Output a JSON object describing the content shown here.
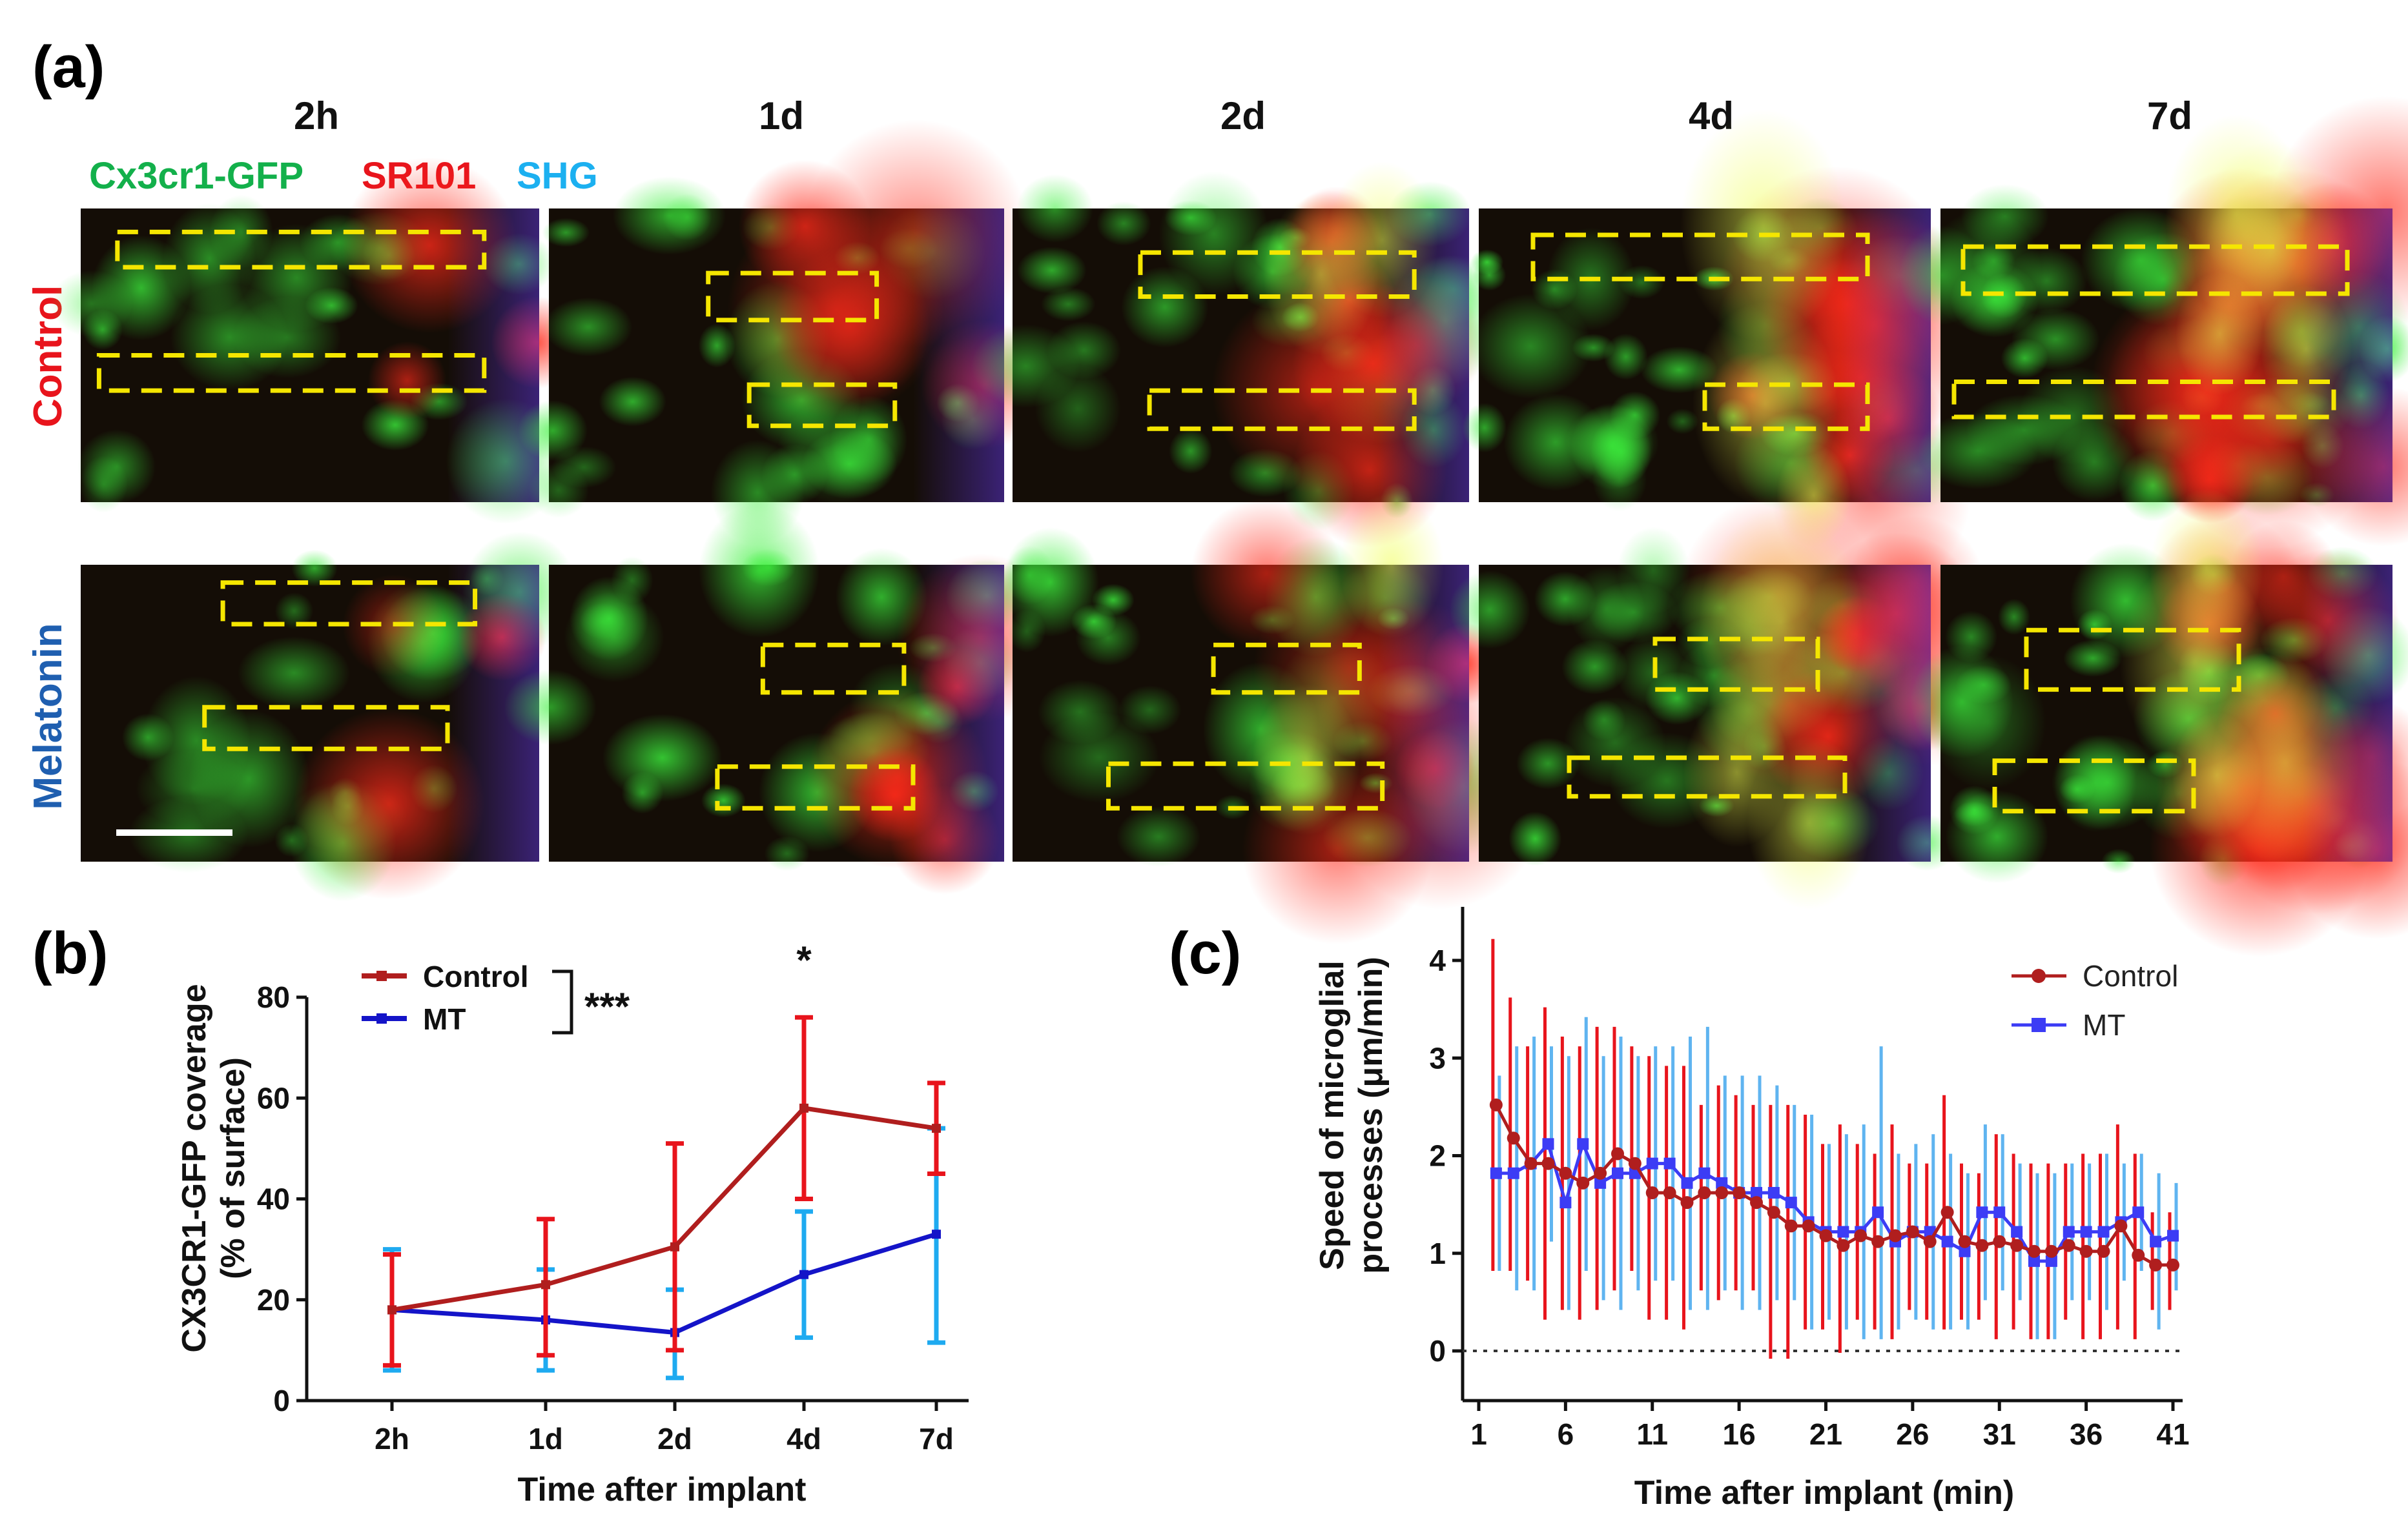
{
  "panel_a": {
    "letter": "(a)",
    "timepoints": [
      "2h",
      "1d",
      "2d",
      "4d",
      "7d"
    ],
    "channels": [
      {
        "label": "Cx3cr1-GFP",
        "color": "#13b04b"
      },
      {
        "label": "SR101",
        "color": "#e8141c"
      },
      {
        "label": "SHG",
        "color": "#1cb0f0"
      }
    ],
    "rows": [
      {
        "label": "Control",
        "color": "#e8141c"
      },
      {
        "label": "Melatonin",
        "color": "#1f5fb0"
      }
    ],
    "roi_color": "#f5e600",
    "scale_bar_color": "#ffffff"
  },
  "panel_b": {
    "letter": "(b)",
    "significance_overall": "***",
    "significance_point": "*",
    "chart_data": {
      "type": "line",
      "categories": [
        "2h",
        "1d",
        "2d",
        "4d",
        "7d"
      ],
      "series": [
        {
          "name": "Control",
          "color": "#b01e1e",
          "errcolor": "#e8141c",
          "values": [
            18,
            23,
            30.5,
            58,
            54
          ],
          "err_high": [
            29,
            36,
            51,
            76,
            63
          ],
          "err_low": [
            7,
            9,
            10,
            40,
            45
          ]
        },
        {
          "name": "MT",
          "color": "#1414c8",
          "errcolor": "#1eaaf0",
          "values": [
            18,
            16,
            13.5,
            25,
            33
          ],
          "err_high": [
            30,
            26,
            22,
            37.5,
            54
          ],
          "err_low": [
            6,
            6,
            4.5,
            12.5,
            11.5
          ]
        }
      ],
      "xlabel": "Time after implant",
      "ylabel": "CX3CR1-GFP coverage",
      "ylabel2": "(% of surface)",
      "ylim": [
        0,
        80
      ],
      "yticks": [
        "0",
        "20",
        "40",
        "60",
        "80"
      ]
    }
  },
  "panel_c": {
    "letter": "(c)",
    "chart_data": {
      "type": "line",
      "x": [
        2,
        3,
        4,
        5,
        6,
        7,
        8,
        9,
        10,
        11,
        12,
        13,
        14,
        15,
        16,
        17,
        18,
        19,
        20,
        21,
        22,
        23,
        24,
        25,
        26,
        27,
        28,
        29,
        30,
        31,
        32,
        33,
        34,
        35,
        36,
        37,
        38,
        39,
        40,
        41
      ],
      "series": [
        {
          "name": "Control",
          "color": "#b01e1e",
          "errcolor": "#e8141c",
          "marker": "circle",
          "values": [
            2.52,
            2.18,
            1.92,
            1.92,
            1.82,
            1.72,
            1.82,
            2.02,
            1.92,
            1.62,
            1.62,
            1.52,
            1.62,
            1.62,
            1.62,
            1.52,
            1.42,
            1.28,
            1.28,
            1.18,
            1.08,
            1.18,
            1.12,
            1.18,
            1.22,
            1.12,
            1.42,
            1.12,
            1.08,
            1.12,
            1.08,
            1.02,
            1.02,
            1.08,
            1.02,
            1.02,
            1.28,
            0.98,
            0.88,
            0.88
          ],
          "err_high": [
            4.22,
            3.62,
            3.12,
            3.52,
            3.22,
            3.12,
            3.32,
            3.32,
            3.12,
            3.02,
            2.92,
            2.92,
            2.52,
            2.72,
            2.62,
            2.52,
            2.52,
            2.52,
            2.42,
            2.12,
            2.32,
            2.12,
            2.02,
            2.32,
            1.92,
            1.92,
            2.62,
            1.92,
            1.82,
            2.22,
            2.02,
            1.92,
            1.92,
            1.92,
            2.02,
            2.02,
            2.32,
            2.02,
            1.42,
            1.42
          ],
          "err_low": [
            0.82,
            0.82,
            0.72,
            0.32,
            0.42,
            0.32,
            0.42,
            0.62,
            0.82,
            0.32,
            0.32,
            0.22,
            0.62,
            0.52,
            0.62,
            0.62,
            -0.08,
            -0.08,
            0.22,
            0.22,
            -0.02,
            0.32,
            0.22,
            0.12,
            0.42,
            0.32,
            0.22,
            0.32,
            0.32,
            0.12,
            0.22,
            0.12,
            0.12,
            0.32,
            0.12,
            0.12,
            0.22,
            0.12,
            0.42,
            0.42
          ]
        },
        {
          "name": "MT",
          "color": "#3c3cf5",
          "errcolor": "#5fb4f0",
          "marker": "square",
          "values": [
            1.82,
            1.82,
            1.92,
            2.12,
            1.52,
            2.12,
            1.72,
            1.82,
            1.82,
            1.92,
            1.92,
            1.72,
            1.82,
            1.72,
            1.62,
            1.62,
            1.62,
            1.52,
            1.32,
            1.22,
            1.22,
            1.22,
            1.42,
            1.12,
            1.22,
            1.22,
            1.12,
            1.02,
            1.42,
            1.42,
            1.22,
            0.92,
            0.92,
            1.22,
            1.22,
            1.22,
            1.32,
            1.42,
            1.12,
            1.18
          ],
          "err_high": [
            2.82,
            3.12,
            3.22,
            3.12,
            3.02,
            3.42,
            3.02,
            3.22,
            3.02,
            3.12,
            3.12,
            3.22,
            3.32,
            2.82,
            2.82,
            2.82,
            2.72,
            2.52,
            2.42,
            2.12,
            2.22,
            2.32,
            3.12,
            2.02,
            2.12,
            2.22,
            2.02,
            1.82,
            2.32,
            2.22,
            1.92,
            1.82,
            1.82,
            1.92,
            1.92,
            2.02,
            1.92,
            2.02,
            1.82,
            1.72
          ],
          "err_low": [
            0.82,
            0.62,
            0.62,
            1.12,
            0.42,
            0.82,
            0.52,
            0.42,
            0.62,
            0.72,
            0.72,
            0.42,
            0.42,
            0.62,
            0.42,
            0.42,
            0.52,
            0.52,
            0.22,
            0.32,
            0.22,
            0.12,
            0.12,
            0.22,
            0.32,
            0.22,
            0.22,
            0.22,
            0.52,
            0.62,
            0.52,
            0.12,
            0.12,
            0.52,
            0.52,
            0.42,
            0.72,
            0.82,
            0.22,
            0.62
          ]
        }
      ],
      "xlabel": "Time after implant (min)",
      "ylabel": "Speed of microglial",
      "ylabel2": "processes (μm/min)",
      "xlim": [
        1,
        41
      ],
      "ylim": [
        0,
        4.5
      ],
      "xticks": [
        "1",
        "6",
        "11",
        "16",
        "21",
        "26",
        "31",
        "36",
        "41"
      ],
      "yticks": [
        "0",
        "1",
        "2",
        "3",
        "4"
      ]
    }
  }
}
